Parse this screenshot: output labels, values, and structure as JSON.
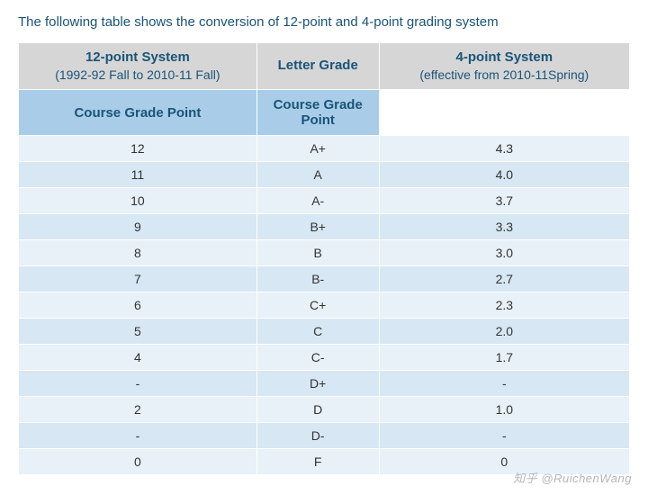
{
  "caption": "The following table shows the conversion of 12-point and 4-point grading system",
  "header": {
    "sys12_title": "12-point System",
    "sys12_sub": "(1992-92 Fall to 2010-11 Fall)",
    "letter": "Letter Grade",
    "sys4_title": "4-point System",
    "sys4_sub": "(effective from 2010-11Spring)",
    "cgp": "Course Grade Point"
  },
  "rows": [
    {
      "p12": "12",
      "letter": "A+",
      "p4": "4.3"
    },
    {
      "p12": "11",
      "letter": "A",
      "p4": "4.0"
    },
    {
      "p12": "10",
      "letter": "A-",
      "p4": "3.7"
    },
    {
      "p12": "9",
      "letter": "B+",
      "p4": "3.3"
    },
    {
      "p12": "8",
      "letter": "B",
      "p4": "3.0"
    },
    {
      "p12": "7",
      "letter": "B-",
      "p4": "2.7"
    },
    {
      "p12": "6",
      "letter": "C+",
      "p4": "2.3"
    },
    {
      "p12": "5",
      "letter": "C",
      "p4": "2.0"
    },
    {
      "p12": "4",
      "letter": "C-",
      "p4": "1.7"
    },
    {
      "p12": "-",
      "letter": "D+",
      "p4": "-"
    },
    {
      "p12": "2",
      "letter": "D",
      "p4": "1.0"
    },
    {
      "p12": "-",
      "letter": "D-",
      "p4": "-"
    },
    {
      "p12": "0",
      "letter": "F",
      "p4": "0"
    }
  ],
  "table_style": {
    "type": "table",
    "columns": [
      "12-point",
      "Letter Grade",
      "4-point"
    ],
    "col_widths_pct": [
      39,
      20,
      41
    ],
    "header_bg": "#d6d6d6",
    "subheader_bg": "#a9cde8",
    "row_odd_bg": "#e8f1f8",
    "row_even_bg": "#d7e7f3",
    "border_color": "#ffffff",
    "header_text_color": "#1a5478",
    "body_text_color": "#333333",
    "caption_color": "#1a5478",
    "caption_fontsize": 15,
    "header_fontsize": 15,
    "body_fontsize": 14,
    "font_family": "Arial"
  },
  "watermark": "知乎 @RuichenWang"
}
